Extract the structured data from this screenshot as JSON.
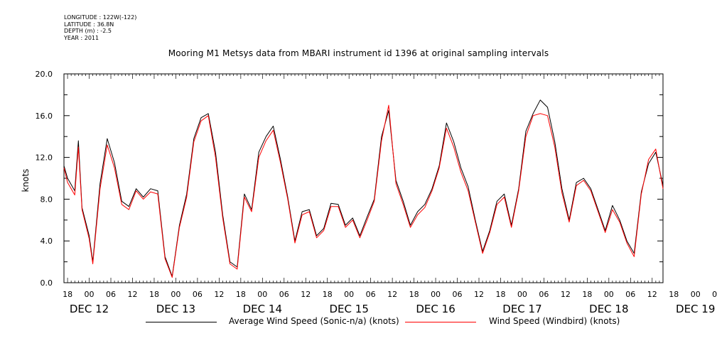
{
  "meta": {
    "longitude": "LONGITUDE : 122W(-122)",
    "latitude": "LATITUDE : 36.8N",
    "depth": "DEPTH (m) : -2.5",
    "year": "YEAR : 2011"
  },
  "chart_data": {
    "type": "line",
    "title": "Mooring M1 Metsys data from MBARI instrument id 1396 at original sampling intervals",
    "ylabel": "knots",
    "xlabel": "",
    "ylim": [
      0,
      20
    ],
    "yticks": [
      "0.0",
      "4.0",
      "8.0",
      "12.0",
      "16.0",
      "20.0"
    ],
    "xlim_hours": [
      -7,
      159
    ],
    "x_note": "hours relative to DEC 12 00:00, 2011",
    "hour_tick_labels": [
      "18",
      "00",
      "06",
      "12",
      "18",
      "00",
      "06",
      "12",
      "18",
      "00",
      "06",
      "12",
      "18",
      "00",
      "06",
      "12",
      "18",
      "00",
      "06",
      "12",
      "18",
      "00",
      "06",
      "12",
      "18",
      "00",
      "06",
      "12",
      "18",
      "00",
      "06",
      "12"
    ],
    "day_labels": [
      "DEC 12",
      "DEC 13",
      "DEC 14",
      "DEC 15",
      "DEC 16",
      "DEC 17",
      "DEC 18",
      "DEC 19"
    ],
    "x_hours": [
      -7,
      -6,
      -4,
      -3,
      -2,
      0,
      1,
      3,
      5,
      7,
      9,
      11,
      13,
      15,
      17,
      19,
      21,
      23,
      25,
      27,
      29,
      31,
      33,
      35,
      37,
      39,
      41,
      43,
      45,
      47,
      49,
      51,
      53,
      55,
      57,
      59,
      61,
      63,
      65,
      67,
      69,
      71,
      73,
      75,
      77,
      79,
      81,
      83,
      85,
      87,
      89,
      91,
      93,
      95,
      97,
      99,
      101,
      103,
      105,
      107,
      109,
      111,
      113,
      115,
      117,
      119,
      121,
      123,
      125,
      127,
      129,
      131,
      133,
      135,
      137,
      139,
      141,
      143,
      145,
      147,
      149,
      151,
      153,
      155,
      157,
      159
    ],
    "series": [
      {
        "name": "Average Wind Speed (Sonic-n/a) (knots)",
        "color": "#000000",
        "values": [
          11.2,
          10.0,
          8.8,
          13.6,
          7.2,
          4.5,
          2.0,
          9.5,
          13.8,
          11.5,
          7.8,
          7.3,
          9.0,
          8.2,
          9.0,
          8.8,
          2.5,
          0.6,
          5.5,
          8.5,
          13.8,
          15.8,
          16.2,
          12.5,
          6.5,
          2.0,
          1.5,
          8.5,
          7.0,
          12.5,
          14.0,
          15.0,
          11.8,
          8.2,
          4.0,
          6.8,
          7.0,
          4.5,
          5.2,
          7.6,
          7.5,
          5.5,
          6.2,
          4.5,
          6.3,
          8.0,
          14.0,
          16.5,
          9.8,
          7.8,
          5.5,
          6.8,
          7.5,
          9.0,
          11.2,
          15.3,
          13.5,
          11.0,
          9.2,
          6.0,
          3.0,
          5.0,
          7.8,
          8.5,
          5.5,
          9.0,
          14.5,
          16.2,
          17.5,
          16.8,
          13.5,
          9.0,
          6.0,
          9.6,
          10.0,
          9.0,
          7.0,
          5.0,
          7.4,
          6.0,
          4.0,
          2.8,
          8.7,
          11.4,
          12.5,
          9.3
        ]
      },
      {
        "name": "Wind Speed (Windbird) (knots)",
        "color": "#ff0000",
        "values": [
          11.0,
          9.6,
          8.4,
          13.0,
          7.0,
          4.2,
          1.8,
          9.0,
          13.2,
          11.0,
          7.5,
          7.0,
          8.8,
          8.0,
          8.7,
          8.5,
          2.3,
          0.5,
          5.3,
          8.2,
          13.5,
          15.5,
          16.0,
          12.0,
          6.2,
          1.8,
          1.3,
          8.2,
          6.8,
          12.0,
          13.6,
          14.6,
          11.5,
          8.0,
          3.8,
          6.5,
          6.8,
          4.3,
          5.0,
          7.3,
          7.3,
          5.3,
          6.0,
          4.3,
          6.0,
          7.8,
          13.6,
          17.0,
          9.5,
          7.5,
          5.3,
          6.5,
          7.2,
          8.8,
          11.0,
          14.8,
          13.0,
          10.6,
          8.8,
          5.8,
          2.8,
          4.8,
          7.5,
          8.2,
          5.3,
          8.8,
          14.0,
          16.0,
          16.2,
          16.0,
          13.0,
          8.6,
          5.8,
          9.3,
          9.8,
          8.8,
          6.8,
          4.8,
          7.0,
          5.8,
          3.8,
          2.5,
          8.5,
          11.8,
          12.8,
          9.0
        ]
      }
    ]
  },
  "legend": {
    "avg_label": "Average Wind Speed (Sonic-n/a) (knots)",
    "wind_label": "Wind Speed (Windbird) (knots)"
  }
}
